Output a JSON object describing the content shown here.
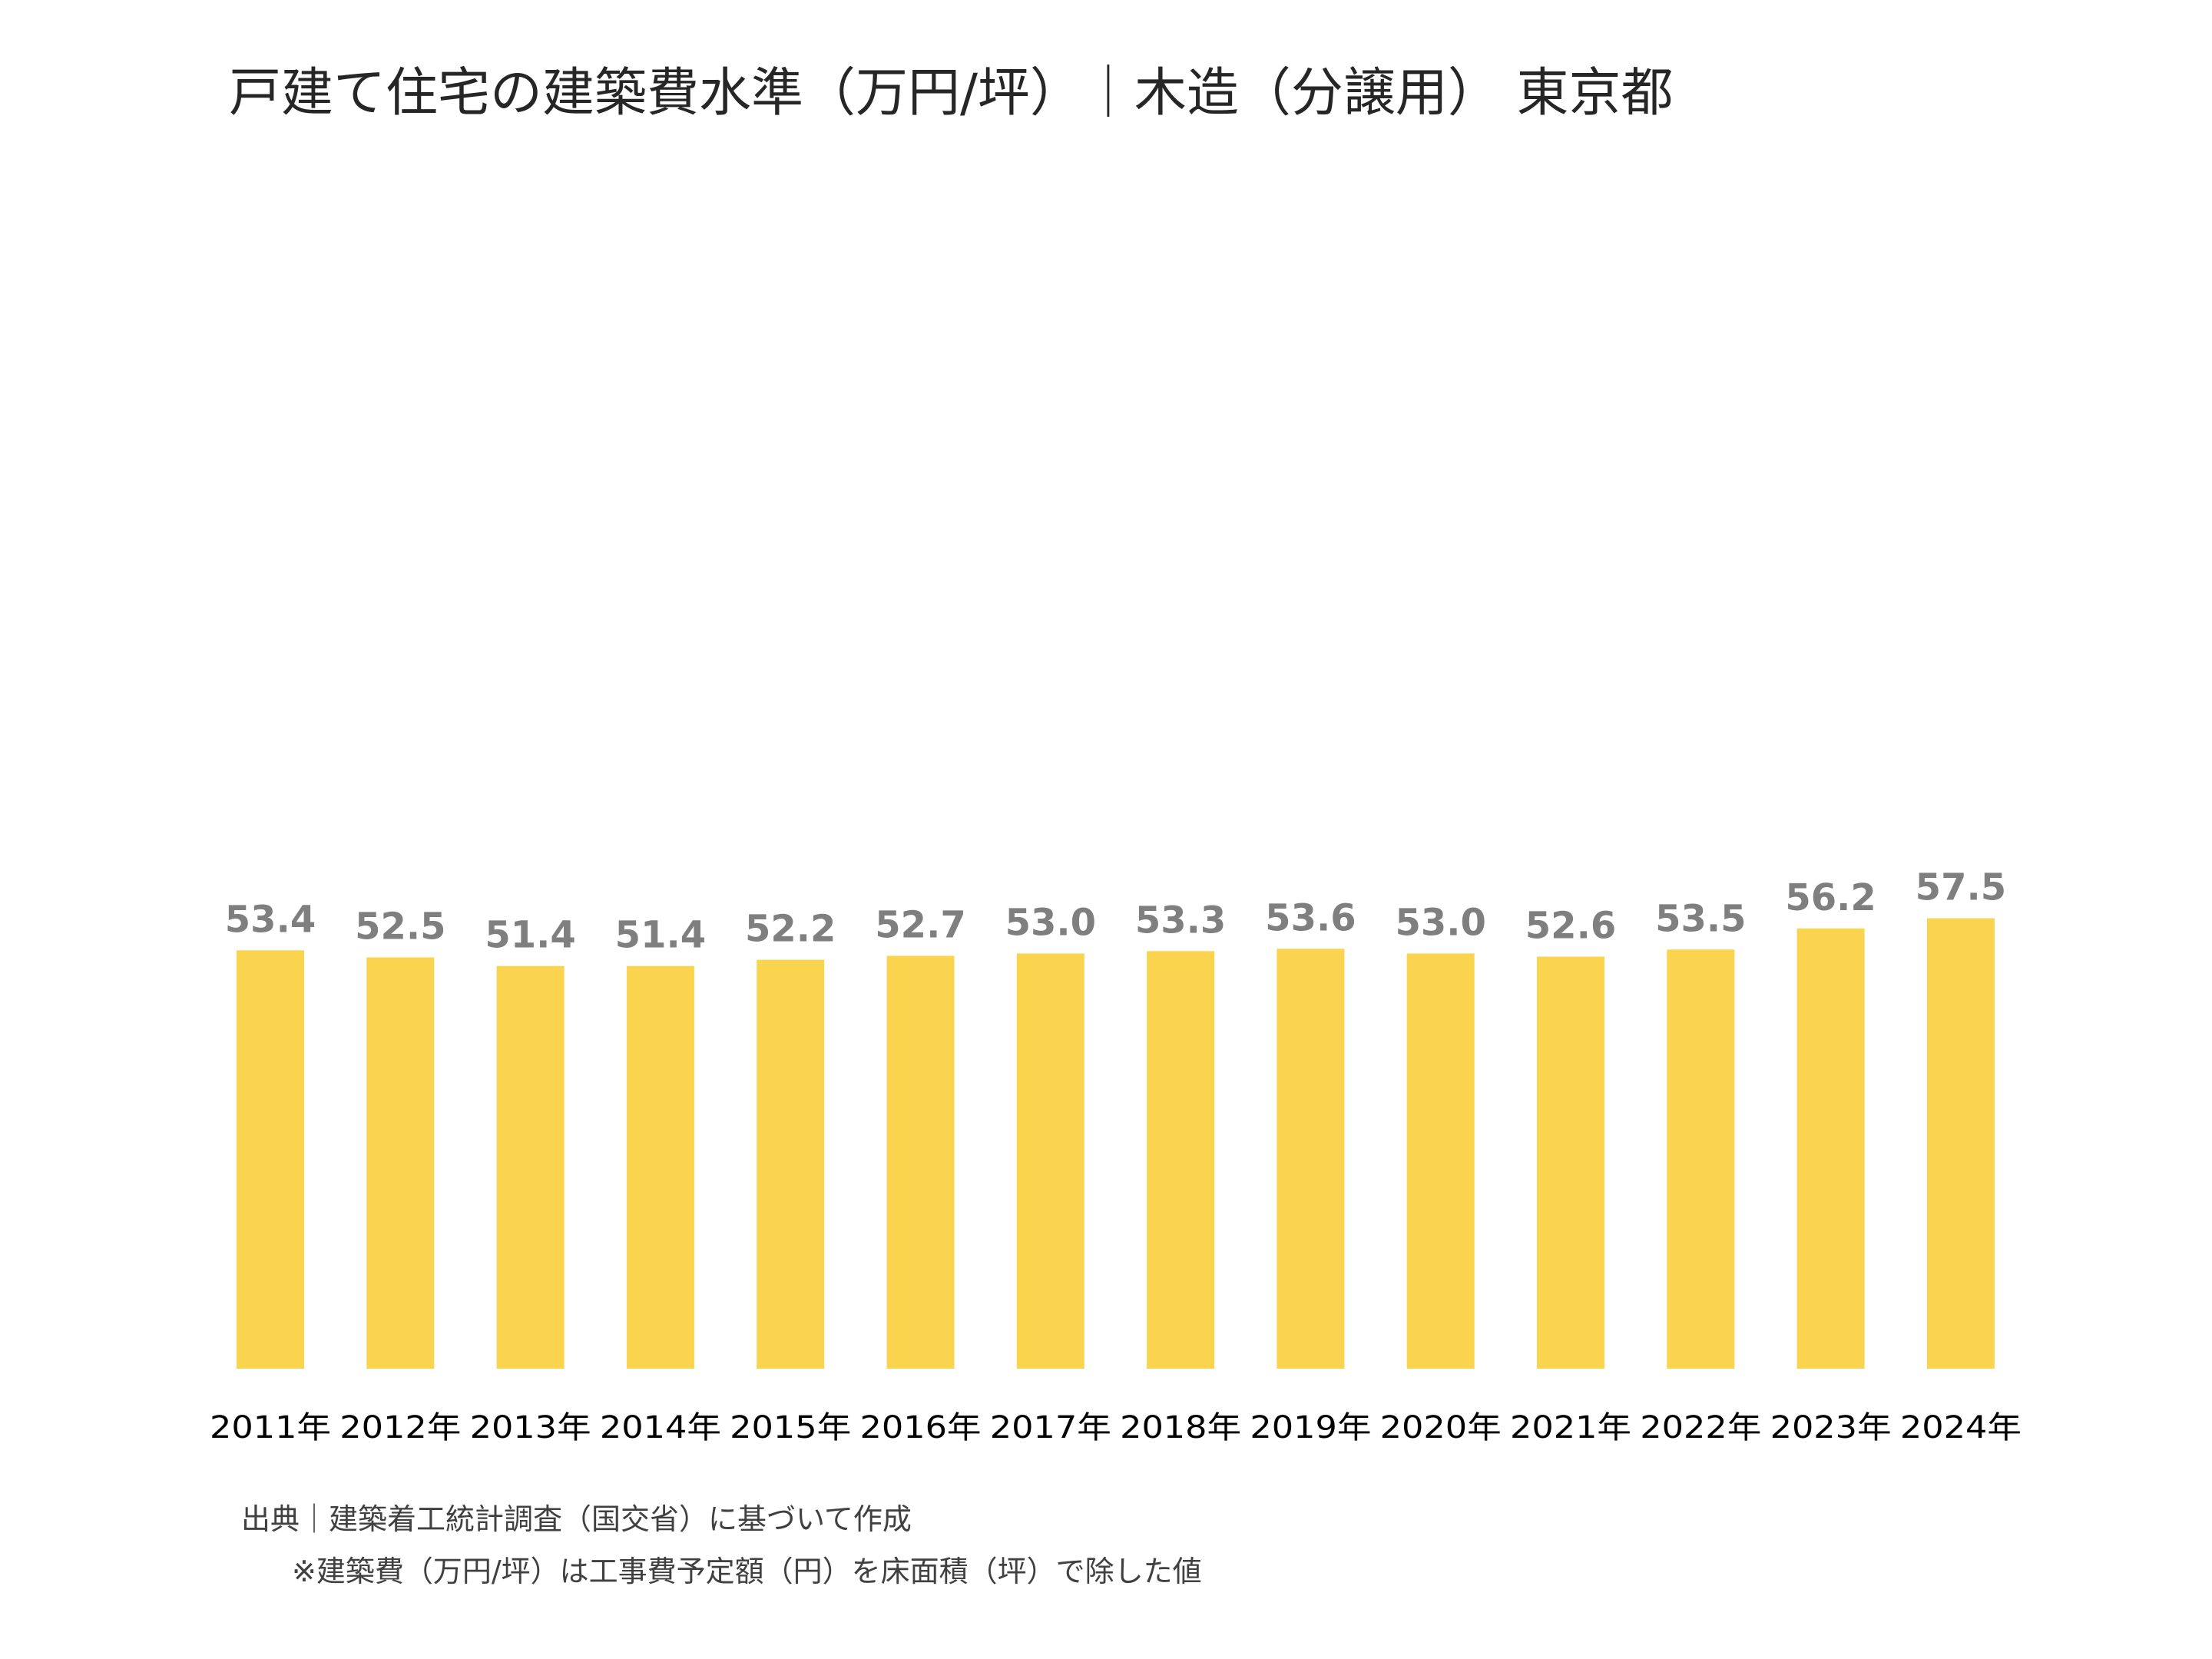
{
  "chart_data": {
    "type": "bar",
    "title": "戸建て住宅の建築費水準（万円/坪）｜木造（分譲用） 東京都",
    "categories": [
      "2011年",
      "2012年",
      "2013年",
      "2014年",
      "2015年",
      "2016年",
      "2017年",
      "2018年",
      "2019年",
      "2020年",
      "2021年",
      "2022年",
      "2023年",
      "2024年"
    ],
    "values": [
      53.4,
      52.5,
      51.4,
      51.4,
      52.2,
      52.7,
      53.0,
      53.3,
      53.6,
      53.0,
      52.6,
      53.5,
      56.2,
      57.5
    ],
    "value_labels": [
      "53.4",
      "52.5",
      "51.4",
      "51.4",
      "52.2",
      "52.7",
      "53.0",
      "53.3",
      "53.6",
      "53.0",
      "52.6",
      "53.5",
      "56.2",
      "57.5"
    ],
    "ylim": [
      0,
      100
    ],
    "grid": false,
    "legend": "none",
    "bar_color": "#FBD44F",
    "label_color": "#7F7F7F",
    "axis_text_color": "#000000"
  },
  "notes": {
    "source": "出典｜建築着工統計調査（国交省）に基づいて作成",
    "footnote": "※建築費（万円/坪）は工事費予定額（円）を床面積（坪）で除した値"
  }
}
